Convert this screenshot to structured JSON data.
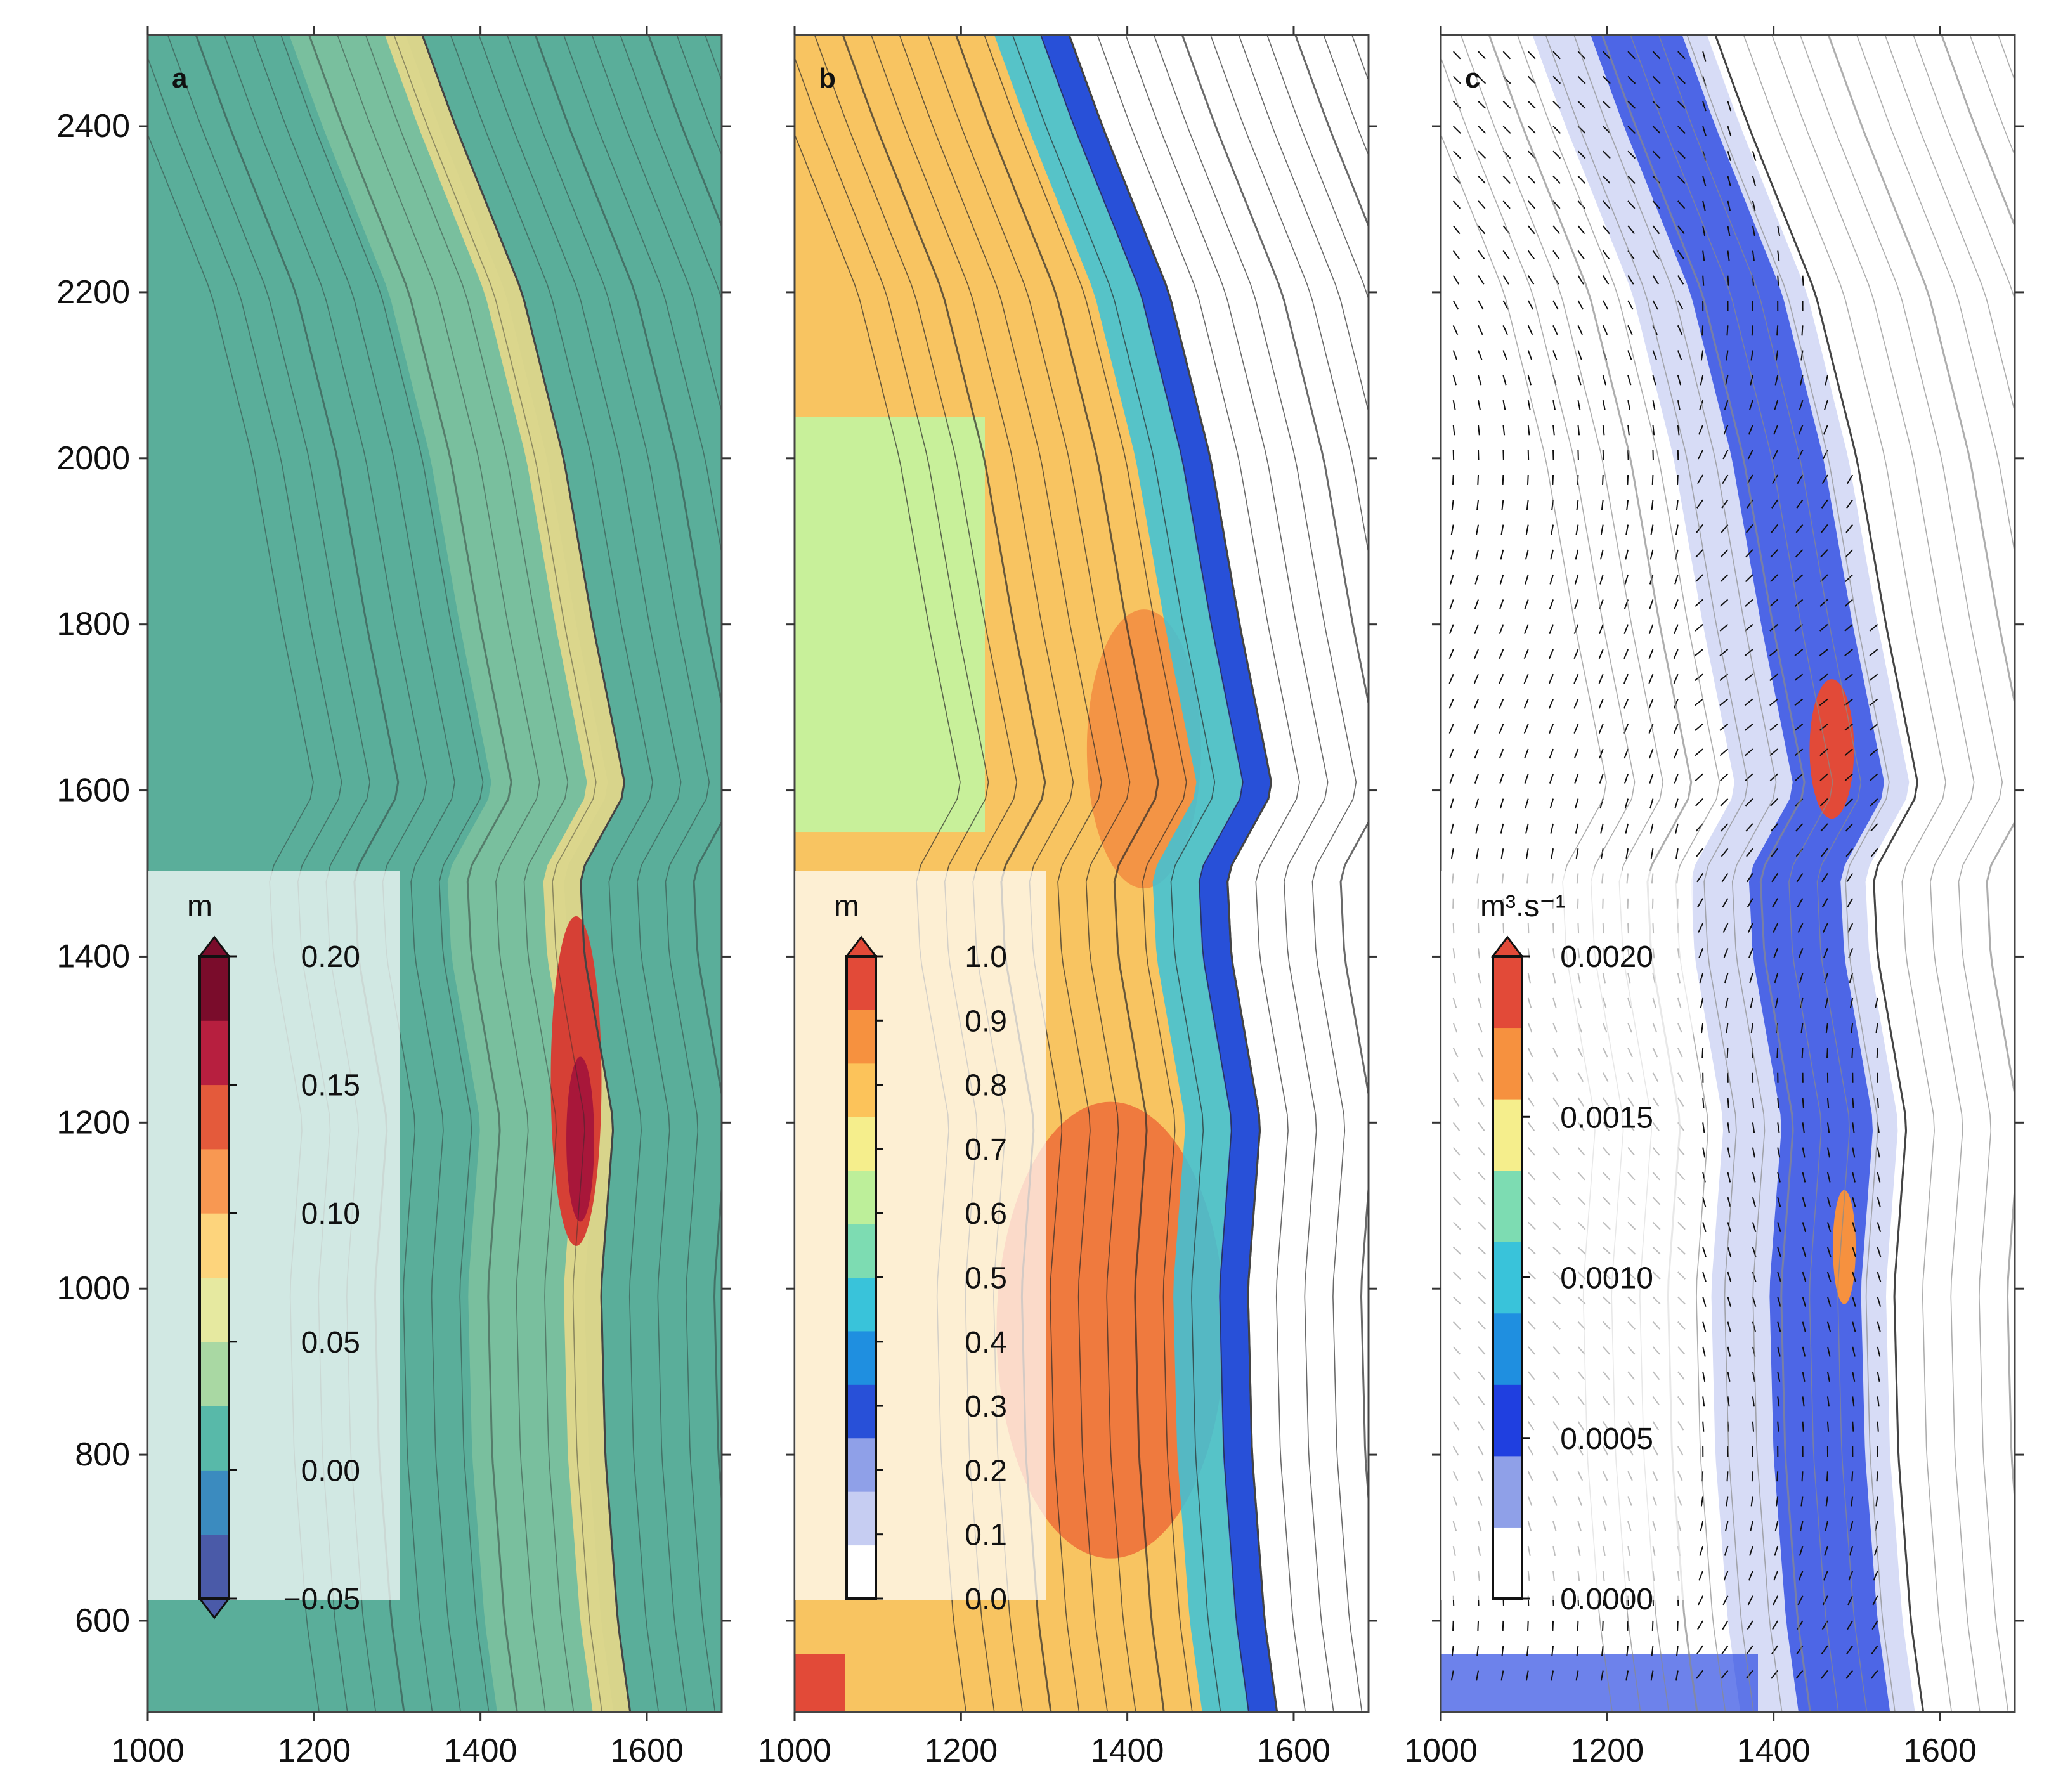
{
  "figure": {
    "panels": [
      {
        "id": "a",
        "label": "a",
        "colorbar": {
          "unit": "m",
          "ticks": [
            "0.20",
            "0.15",
            "0.10",
            "0.05",
            "0.00",
            "−0.05"
          ],
          "range": [
            -0.05,
            0.2
          ],
          "colors": [
            "#4a5aa8",
            "#3b8bbf",
            "#58b9a9",
            "#a9d8a3",
            "#e6e9a0",
            "#fdd47c",
            "#f89852",
            "#e45a3b",
            "#b71f3f",
            "#7a0c2b"
          ]
        }
      },
      {
        "id": "b",
        "label": "b",
        "colorbar": {
          "unit": "m",
          "ticks": [
            "1.0",
            "0.9",
            "0.8",
            "0.7",
            "0.6",
            "0.5",
            "0.4",
            "0.3",
            "0.2",
            "0.1",
            "0.0"
          ],
          "range": [
            0.0,
            1.0
          ],
          "colors": [
            "#ffffff",
            "#c6cdf2",
            "#8fa0e8",
            "#2850d8",
            "#1f8fe0",
            "#39c3da",
            "#7ddcb2",
            "#bdef9a",
            "#f5ee8c",
            "#fcc35a",
            "#f6913f",
            "#e24a38"
          ]
        }
      },
      {
        "id": "c",
        "label": "c",
        "colorbar": {
          "unit": "m³.s⁻¹",
          "ticks": [
            "0.0020",
            "0.0015",
            "0.0010",
            "0.0005",
            "0.0000"
          ],
          "range": [
            0.0,
            0.002
          ],
          "colors": [
            "#ffffff",
            "#8fa0e8",
            "#1f3fe0",
            "#1f8fe0",
            "#39c3da",
            "#7ddcb2",
            "#f5ee8c",
            "#f6913f",
            "#e24a38"
          ]
        }
      }
    ],
    "colors": {
      "panel_a_background": "#5aae9a",
      "panel_c_contours": "#8a8a8a",
      "contours": "#2a2a2a"
    }
  },
  "chart_data": [
    {
      "type": "heatmap",
      "panel": "a",
      "title": "",
      "xlabel": "",
      "ylabel": "",
      "xlim": [
        1000,
        1690
      ],
      "ylim": [
        490,
        2510
      ],
      "x_ticks": [
        1000,
        1200,
        1400,
        1600
      ],
      "y_ticks": [
        600,
        800,
        1000,
        1200,
        1400,
        1600,
        1800,
        2000,
        2200,
        2400
      ],
      "colorbar_unit": "m",
      "colorbar_range": [
        -0.05,
        0.2
      ],
      "grid": false
    },
    {
      "type": "heatmap",
      "panel": "b",
      "title": "",
      "xlabel": "",
      "ylabel": "",
      "xlim": [
        1000,
        1690
      ],
      "ylim": [
        490,
        2510
      ],
      "x_ticks": [
        1000,
        1200,
        1400,
        1600
      ],
      "y_ticks": [
        600,
        800,
        1000,
        1200,
        1400,
        1600,
        1800,
        2000,
        2200,
        2400
      ],
      "colorbar_unit": "m",
      "colorbar_range": [
        0.0,
        1.0
      ],
      "grid": false
    },
    {
      "type": "heatmap",
      "panel": "c",
      "title": "",
      "xlabel": "",
      "ylabel": "",
      "xlim": [
        1000,
        1690
      ],
      "ylim": [
        490,
        2510
      ],
      "x_ticks": [
        1000,
        1200,
        1400,
        1600
      ],
      "y_ticks": [
        600,
        800,
        1000,
        1200,
        1400,
        1600,
        1800,
        2000,
        2200,
        2400
      ],
      "colorbar_unit": "m³.s⁻¹",
      "colorbar_range": [
        0.0,
        0.002
      ],
      "vectors": "transport direction arrows",
      "grid": false
    }
  ]
}
